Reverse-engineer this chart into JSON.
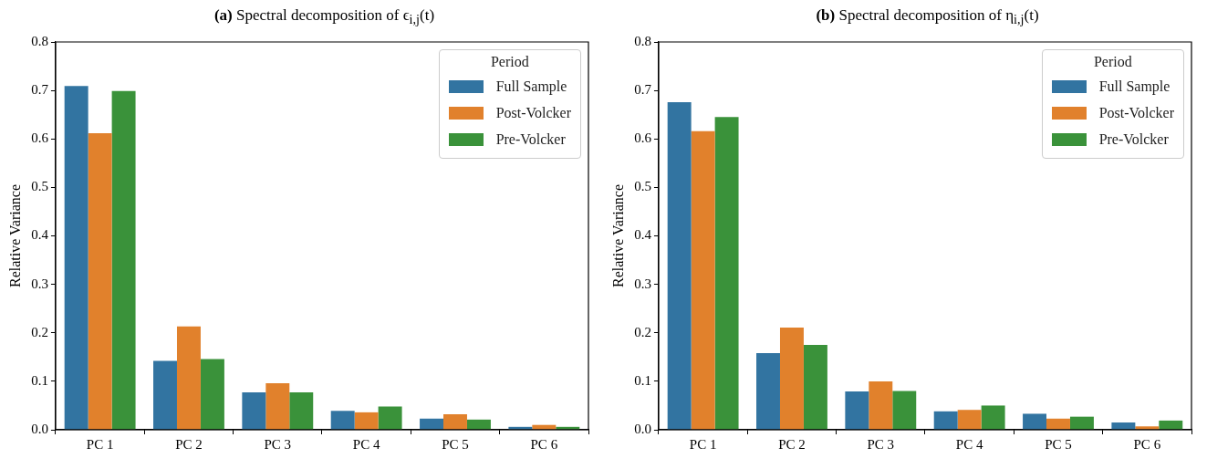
{
  "chart_data": [
    {
      "type": "bar",
      "title": "(a) Spectral decomposition of ϵ$_{i,j}$(t)",
      "ylabel": "Relative Variance",
      "categories": [
        "PC 1",
        "PC 2",
        "PC 3",
        "PC 4",
        "PC 5",
        "PC 6"
      ],
      "series": [
        {
          "name": "Full Sample",
          "color": "#3274a1",
          "values": [
            0.709,
            0.142,
            0.077,
            0.039,
            0.023,
            0.006
          ]
        },
        {
          "name": "Post-Volcker",
          "color": "#e1812c",
          "values": [
            0.612,
            0.213,
            0.096,
            0.036,
            0.032,
            0.01
          ]
        },
        {
          "name": "Pre-Volcker",
          "color": "#3a923a",
          "values": [
            0.699,
            0.146,
            0.077,
            0.048,
            0.021,
            0.006
          ]
        }
      ],
      "ylim": [
        0,
        0.8
      ],
      "yticks": [
        {
          "value": 0,
          "label": "0.0"
        },
        0.1,
        0.2,
        0.3,
        0.4,
        0.5,
        0.6,
        0.7,
        0.8
      ],
      "legend": "top right",
      "legend_title": "Period"
    },
    {
      "type": "bar",
      "title": "(b) Spectral decomposition of η$_{i,j}$(t)",
      "ylabel": "Relative Variance",
      "categories": [
        "PC 1",
        "PC 2",
        "PC 3",
        "PC 4",
        "PC 5",
        "PC 6"
      ],
      "series": [
        {
          "name": "Full Sample",
          "color": "#3274a1",
          "values": [
            0.676,
            0.158,
            0.079,
            0.038,
            0.033,
            0.015
          ]
        },
        {
          "name": "Post-Volcker",
          "color": "#e1812c",
          "values": [
            0.616,
            0.211,
            0.1,
            0.041,
            0.023,
            0.007
          ]
        },
        {
          "name": "Pre-Volcker",
          "color": "#3a923a",
          "values": [
            0.645,
            0.175,
            0.08,
            0.05,
            0.027,
            0.019
          ]
        }
      ],
      "ylim": [
        0,
        0.8
      ],
      "yticks": [
        {
          "value": 0,
          "label": "0.0"
        },
        0.1,
        0.2,
        0.3,
        0.4,
        0.5,
        0.6,
        0.7,
        0.8
      ],
      "legend": "top right",
      "legend_title": "Period"
    }
  ]
}
